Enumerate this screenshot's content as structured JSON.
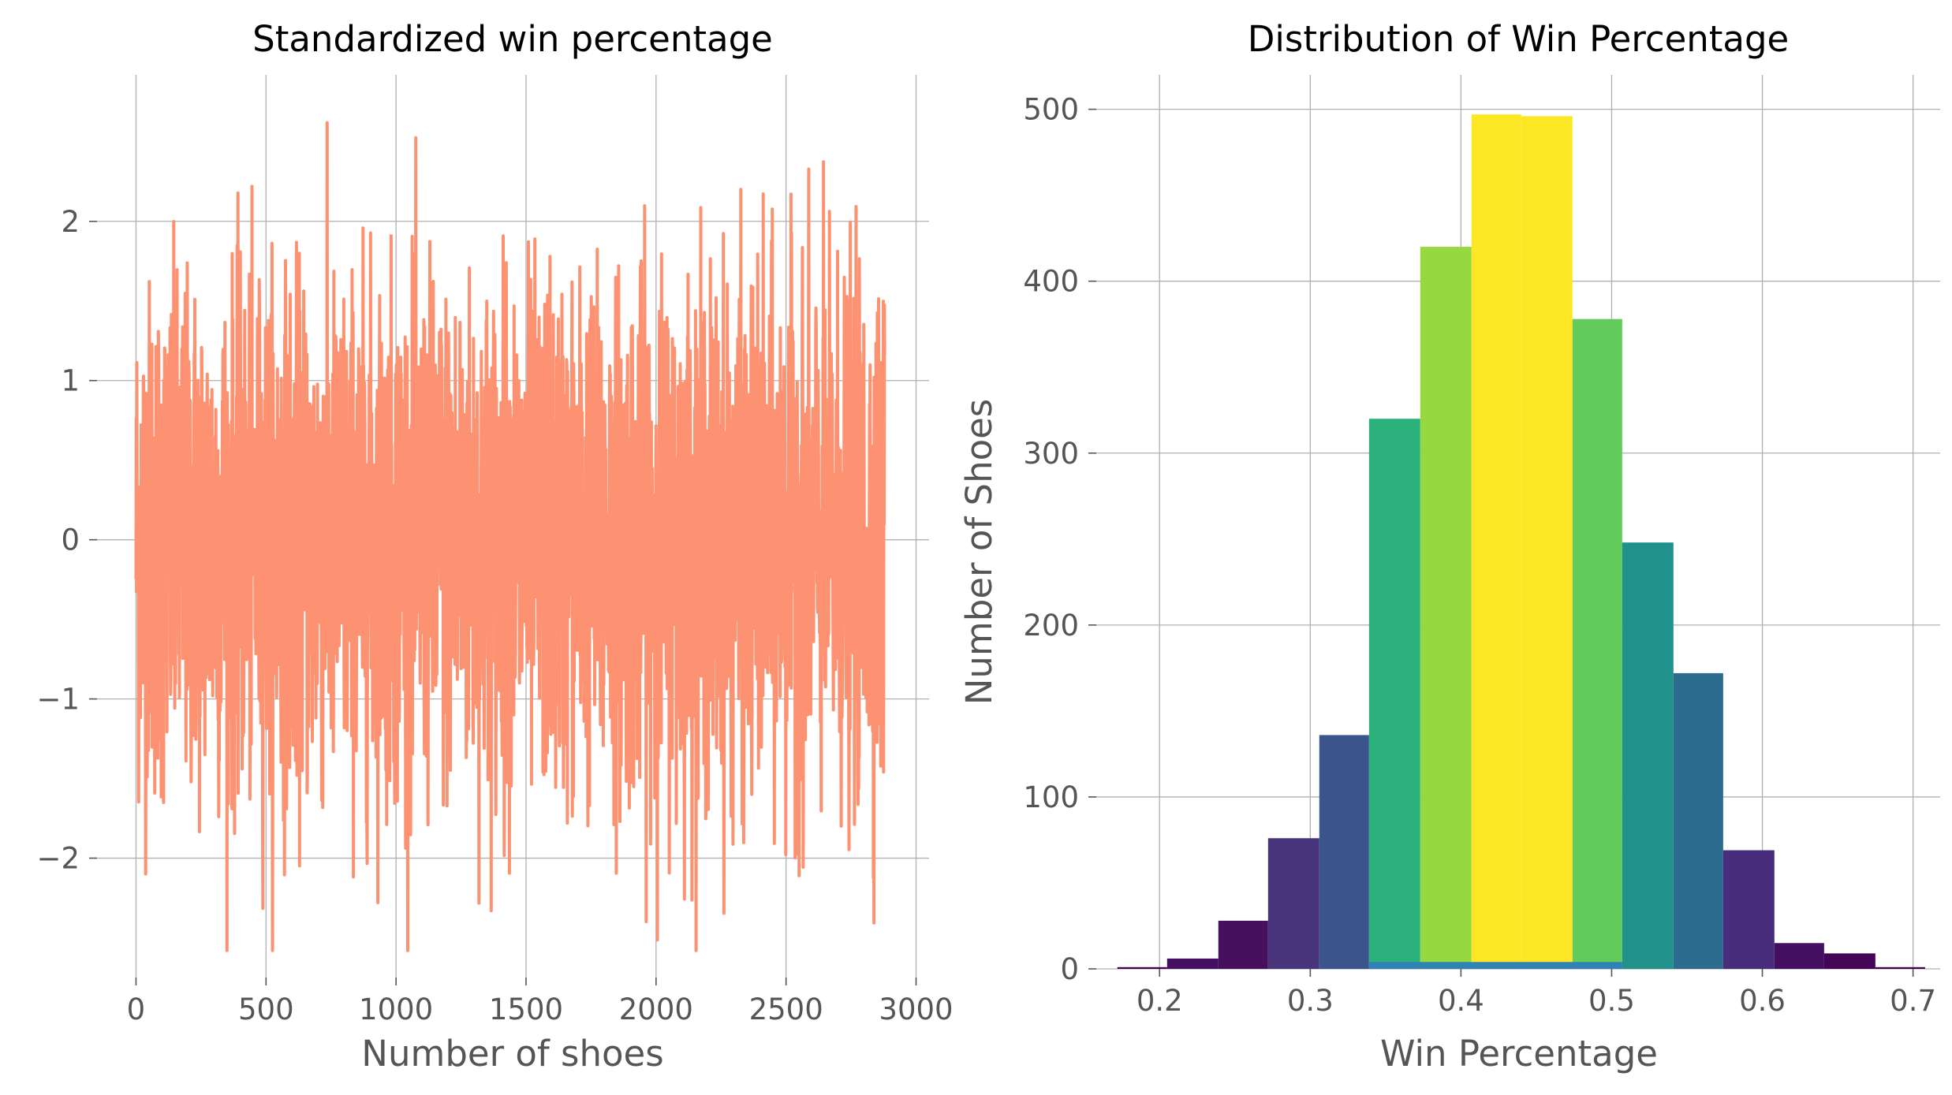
{
  "chart_data": [
    {
      "type": "line",
      "title": "Standardized win percentage",
      "xlabel": "Number of shoes",
      "ylabel": "",
      "xlim": [
        -150,
        3050
      ],
      "ylim": [
        -2.75,
        2.92
      ],
      "xticks": [
        0,
        500,
        1000,
        1500,
        2000,
        2500,
        3000
      ],
      "xtick_labels": [
        "0",
        "500",
        "1000",
        "1500",
        "2000",
        "2500",
        "3000"
      ],
      "yticks": [
        -2,
        -1,
        0,
        1,
        2
      ],
      "ytick_labels": [
        "−2",
        "−1",
        "0",
        "1",
        "2"
      ],
      "grid": true,
      "series": [
        {
          "color": "#fc9272",
          "n_points": 2880,
          "mean": 0,
          "std": 1,
          "approx_min": -2.58,
          "approx_max": 2.68
        }
      ]
    },
    {
      "type": "bar",
      "title": "Distribution of Win Percentage",
      "xlabel": "Win Percentage",
      "ylabel": "Number of Shoes",
      "xlim": [
        0.158,
        0.718
      ],
      "ylim": [
        0,
        520
      ],
      "xticks": [
        0.2,
        0.3,
        0.4,
        0.5,
        0.6,
        0.7
      ],
      "xtick_labels": [
        "0.2",
        "0.3",
        "0.4",
        "0.5",
        "0.6",
        "0.7"
      ],
      "yticks": [
        0,
        100,
        200,
        300,
        400,
        500
      ],
      "ytick_labels": [
        "0",
        "100",
        "200",
        "300",
        "400",
        "500"
      ],
      "grid": true,
      "bins": [
        {
          "x0": 0.172,
          "x1": 0.205,
          "value": 1,
          "color": "#440154"
        },
        {
          "x0": 0.205,
          "x1": 0.239,
          "value": 6,
          "color": "#440f62"
        },
        {
          "x0": 0.239,
          "x1": 0.272,
          "value": 28,
          "color": "#46105f"
        },
        {
          "x0": 0.272,
          "x1": 0.306,
          "value": 76,
          "color": "#48347a"
        },
        {
          "x0": 0.306,
          "x1": 0.339,
          "value": 136,
          "color": "#39558c"
        },
        {
          "x0": 0.339,
          "x1": 0.373,
          "value": 320,
          "color": "#2db27d"
        },
        {
          "x0": 0.373,
          "x1": 0.407,
          "value": 420,
          "color": "#95d840"
        },
        {
          "x0": 0.407,
          "x1": 0.44,
          "value": 497,
          "color": "#fde725"
        },
        {
          "x0": 0.44,
          "x1": 0.474,
          "value": 496,
          "color": "#fde725"
        },
        {
          "x0": 0.474,
          "x1": 0.507,
          "value": 378,
          "color": "#62cb5c"
        },
        {
          "x0": 0.507,
          "x1": 0.541,
          "value": 248,
          "color": "#21918c"
        },
        {
          "x0": 0.541,
          "x1": 0.574,
          "value": 172,
          "color": "#2c6c8e"
        },
        {
          "x0": 0.574,
          "x1": 0.608,
          "value": 69,
          "color": "#472d7b"
        },
        {
          "x0": 0.608,
          "x1": 0.641,
          "value": 15,
          "color": "#440e61"
        },
        {
          "x0": 0.641,
          "x1": 0.675,
          "value": 9,
          "color": "#440558"
        },
        {
          "x0": 0.675,
          "x1": 0.708,
          "value": 1,
          "color": "#440154"
        }
      ],
      "baseline_bar": {
        "x0": 0.339,
        "x1": 0.507,
        "value": 4,
        "color": "#2f82b4"
      }
    }
  ]
}
